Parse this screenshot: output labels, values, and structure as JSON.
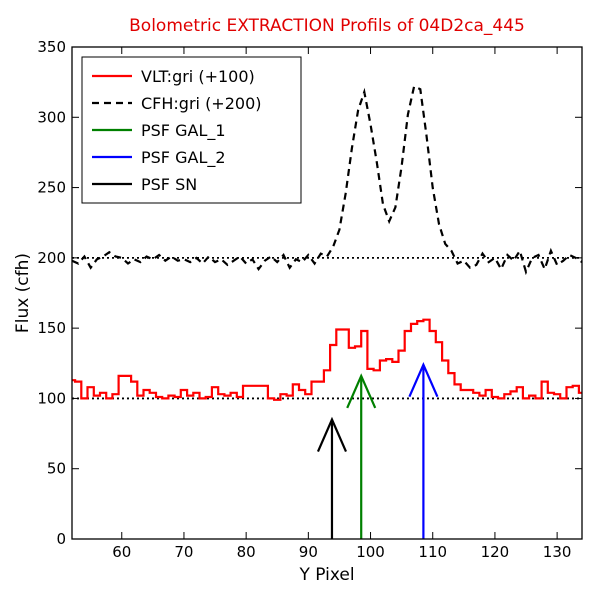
{
  "chart_data": {
    "type": "line",
    "title": "Bolometric EXTRACTION Profils of 04D2ca_445",
    "xlabel": "Y Pixel",
    "ylabel": "Flux (cfh)",
    "xlim": [
      52,
      134
    ],
    "ylim": [
      0,
      350
    ],
    "xticks": [
      60,
      70,
      80,
      90,
      100,
      110,
      120,
      130
    ],
    "yticks": [
      0,
      50,
      100,
      150,
      200,
      250,
      300,
      350
    ],
    "grid": false,
    "legend_position": "top-left",
    "reference_lines": [
      {
        "y": 100,
        "style": "dotted",
        "color": "#000000"
      },
      {
        "y": 200,
        "style": "dotted",
        "color": "#000000"
      }
    ],
    "series": [
      {
        "name": "VLT:gri (+100)",
        "color": "#ff0000",
        "style": "steps",
        "x": [
          52,
          53,
          54,
          55,
          56,
          57,
          58,
          59,
          60,
          61,
          62,
          63,
          64,
          65,
          66,
          67,
          68,
          69,
          70,
          71,
          72,
          73,
          74,
          75,
          76,
          77,
          78,
          79,
          80,
          81,
          82,
          83,
          84,
          85,
          86,
          87,
          88,
          89,
          90,
          91,
          92,
          93,
          94,
          95,
          96,
          97,
          98,
          99,
          100,
          101,
          102,
          103,
          104,
          105,
          106,
          107,
          108,
          109,
          110,
          111,
          112,
          113,
          114,
          115,
          116,
          117,
          118,
          119,
          120,
          121,
          122,
          123,
          124,
          125,
          126,
          127,
          128,
          129,
          130,
          131,
          132,
          133,
          134
        ],
        "y": [
          113,
          112,
          100,
          108,
          102,
          104,
          100,
          103,
          116,
          116,
          112,
          102,
          106,
          104,
          101,
          100,
          102,
          101,
          106,
          102,
          104,
          100,
          101,
          108,
          103,
          102,
          104,
          101,
          109,
          109,
          109,
          109,
          100,
          99,
          103,
          102,
          110,
          106,
          103,
          112,
          112,
          120,
          138,
          149,
          149,
          136,
          137,
          148,
          121,
          120,
          127,
          128,
          126,
          134,
          148,
          153,
          155,
          156,
          148,
          140,
          127,
          118,
          110,
          106,
          106,
          104,
          102,
          106,
          101,
          100,
          103,
          105,
          108,
          100,
          102,
          100,
          112,
          104,
          103,
          100,
          108,
          109,
          104
        ]
      },
      {
        "name": "CFH:gri (+200)",
        "color": "#000000",
        "style": "dashed",
        "x": [
          52,
          53,
          54,
          55,
          56,
          57,
          58,
          59,
          60,
          61,
          62,
          63,
          64,
          65,
          66,
          67,
          68,
          69,
          70,
          71,
          72,
          73,
          74,
          75,
          76,
          77,
          78,
          79,
          80,
          81,
          82,
          83,
          84,
          85,
          86,
          87,
          88,
          89,
          90,
          91,
          92,
          93,
          94,
          95,
          96,
          97,
          98,
          99,
          100,
          101,
          102,
          103,
          104,
          105,
          106,
          107,
          108,
          109,
          110,
          111,
          112,
          113,
          114,
          115,
          116,
          117,
          118,
          119,
          120,
          121,
          122,
          123,
          124,
          125,
          126,
          127,
          128,
          129,
          130,
          131,
          132,
          133,
          134
        ],
        "y": [
          198,
          196,
          201,
          193,
          199,
          201,
          204,
          201,
          200,
          196,
          199,
          197,
          201,
          199,
          202,
          198,
          201,
          198,
          199,
          197,
          200,
          196,
          201,
          197,
          199,
          195,
          198,
          201,
          196,
          199,
          192,
          198,
          201,
          197,
          202,
          193,
          199,
          197,
          202,
          196,
          203,
          201,
          208,
          220,
          246,
          278,
          305,
          318,
          295,
          268,
          238,
          226,
          236,
          265,
          302,
          322,
          320,
          287,
          250,
          224,
          210,
          205,
          196,
          198,
          193,
          195,
          203,
          197,
          200,
          192,
          202,
          198,
          205,
          190,
          200,
          202,
          192,
          205,
          195,
          198,
          202,
          200,
          197
        ]
      }
    ],
    "arrows": [
      {
        "name": "PSF GAL_1",
        "color": "#008000",
        "x": 98.5,
        "y_start": 0,
        "y_tip": 116
      },
      {
        "name": "PSF GAL_2",
        "color": "#0000ff",
        "x": 108.5,
        "y_start": 0,
        "y_tip": 124
      },
      {
        "name": "PSF SN",
        "color": "#000000",
        "x": 93.8,
        "y_start": 0,
        "y_tip": 85
      }
    ]
  }
}
